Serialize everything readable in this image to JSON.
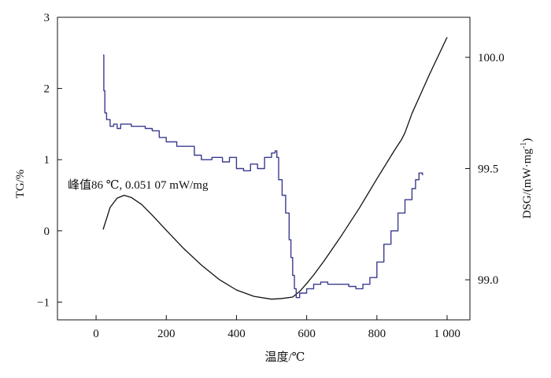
{
  "chart_data": {
    "type": "line",
    "title": "",
    "xlabel": "温度/℃",
    "ylabel_left": "TG/%",
    "ylabel_right_main": "DSG/(mW·mg",
    "ylabel_right_sup": "-1",
    "ylabel_right_close": ")",
    "xlim": [
      -110,
      1065
    ],
    "ylim_left": [
      -1.25,
      3
    ],
    "ylim_right": [
      98.82,
      100.18
    ],
    "x_ticks": [
      0,
      200,
      400,
      600,
      800,
      1000
    ],
    "x_tick_labels": [
      "0",
      "200",
      "400",
      "600",
      "800",
      "1 000"
    ],
    "y_left_ticks": [
      -1,
      0,
      1,
      2,
      3
    ],
    "y_left_tick_labels": [
      "−1",
      "0",
      "1",
      "2",
      "3"
    ],
    "y_right_ticks": [
      99.0,
      99.5,
      100.0
    ],
    "y_right_tick_labels": [
      "99.0",
      "99.5",
      "100.0"
    ],
    "grid": false,
    "legend": "none",
    "annotation": {
      "text": "峰值86 ℃, 0.051 07 mW/mg"
    },
    "series": [
      {
        "axis": "left",
        "color": "#111111",
        "style": "smooth",
        "x": [
          20,
          40,
          60,
          80,
          100,
          130,
          160,
          200,
          250,
          300,
          350,
          400,
          450,
          500,
          530,
          560,
          580,
          600,
          620,
          650,
          700,
          750,
          800,
          850,
          870,
          880,
          900,
          950,
          1000
        ],
        "y": [
          0.02,
          0.33,
          0.46,
          0.5,
          0.47,
          0.37,
          0.22,
          0.01,
          -0.25,
          -0.48,
          -0.68,
          -0.83,
          -0.92,
          -0.96,
          -0.95,
          -0.93,
          -0.85,
          -0.74,
          -0.62,
          -0.42,
          -0.06,
          0.32,
          0.73,
          1.13,
          1.28,
          1.38,
          1.65,
          2.2,
          2.72
        ]
      },
      {
        "axis": "right",
        "color": "#3b3b8f",
        "style": "stepped",
        "x": [
          20,
          22,
          25,
          30,
          40,
          50,
          60,
          70,
          80,
          100,
          120,
          140,
          160,
          180,
          200,
          230,
          260,
          280,
          300,
          330,
          360,
          380,
          400,
          420,
          440,
          460,
          480,
          500,
          510,
          515,
          520,
          530,
          540,
          550,
          555,
          560,
          565,
          570,
          580,
          600,
          620,
          640,
          660,
          680,
          700,
          720,
          740,
          760,
          780,
          800,
          820,
          840,
          860,
          880,
          900,
          910,
          920,
          930
        ],
        "y": [
          100.01,
          99.85,
          99.75,
          99.72,
          99.69,
          99.7,
          99.68,
          99.7,
          99.7,
          99.69,
          99.69,
          99.68,
          99.67,
          99.64,
          99.62,
          99.6,
          99.6,
          99.56,
          99.54,
          99.55,
          99.53,
          99.55,
          99.5,
          99.49,
          99.52,
          99.5,
          99.55,
          99.57,
          99.58,
          99.55,
          99.45,
          99.38,
          99.3,
          99.18,
          99.1,
          99.02,
          98.96,
          98.92,
          98.94,
          98.96,
          98.98,
          98.99,
          98.98,
          98.98,
          98.98,
          98.97,
          98.96,
          98.98,
          99.01,
          99.08,
          99.16,
          99.22,
          99.3,
          99.36,
          99.41,
          99.45,
          99.48,
          99.47
        ]
      }
    ]
  }
}
